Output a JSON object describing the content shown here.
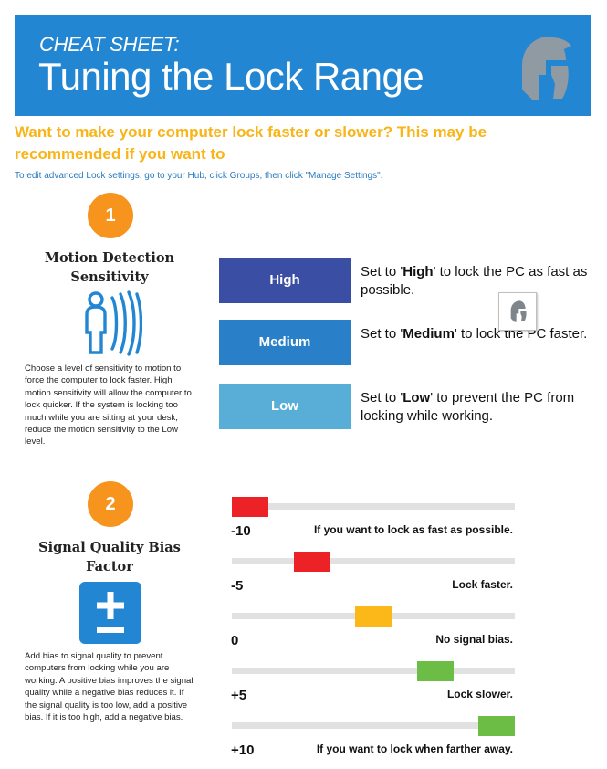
{
  "header": {
    "kicker": "CHEAT SHEET:",
    "title": "Tuning the Lock Range",
    "logo_icon": "spartan-helmet-icon"
  },
  "intro": {
    "question": "Want to make your computer lock faster or slower? This may be recommended if you want to",
    "instruction": "To edit advanced Lock settings, go to your Hub, click Groups, then click \"Manage Settings\"."
  },
  "section1": {
    "number": "1",
    "title": "Motion Detection Sensitivity",
    "icon": "motion-sensor-person-icon",
    "body": "Choose a level of sensitivity to motion to force the computer to lock faster. High motion sensitivity will allow the computer to lock quicker. If the system is locking too much while you are sitting at your desk, reduce the motion sensitivity to the Low level.",
    "levels": [
      {
        "label": "High",
        "color": "#3a4fa3",
        "desc_pre": "Set to '",
        "desc_bold": "High",
        "desc_post": "' to lock the PC as fast as possible."
      },
      {
        "label": "Medium",
        "color": "#2a80c8",
        "desc_pre": "Set to '",
        "desc_bold": "Medium",
        "desc_post": "' to lock the PC faster."
      },
      {
        "label": "Low",
        "color": "#58aed6",
        "desc_pre": "Set to '",
        "desc_bold": "Low",
        "desc_post": "' to prevent the PC from locking while working."
      }
    ]
  },
  "section2": {
    "number": "2",
    "title": "Signal Quality Bias Factor",
    "icon": "plus-minus-icon",
    "body": "Add bias to signal quality to prevent computers from locking while you are working. A positive bias improves the signal quality while a negative bias reduces it. If the signal quality is too low, add a positive bias. If it is too high, add a negative bias.",
    "scale": [
      -10,
      10
    ],
    "rows": [
      {
        "value": "-10",
        "bias": -10,
        "color": "#ec2227",
        "desc": "If you want to lock as fast as possible."
      },
      {
        "value": "-5",
        "bias": -5,
        "color": "#ec2227",
        "desc": "Lock faster."
      },
      {
        "value": "0",
        "bias": 0,
        "color": "#fbb818",
        "desc": "No signal bias."
      },
      {
        "value": "+5",
        "bias": 5,
        "color": "#6cbd45",
        "desc": "Lock slower."
      },
      {
        "value": "+10",
        "bias": 10,
        "color": "#6cbd45",
        "desc": "If you want to lock when farther away."
      }
    ]
  }
}
